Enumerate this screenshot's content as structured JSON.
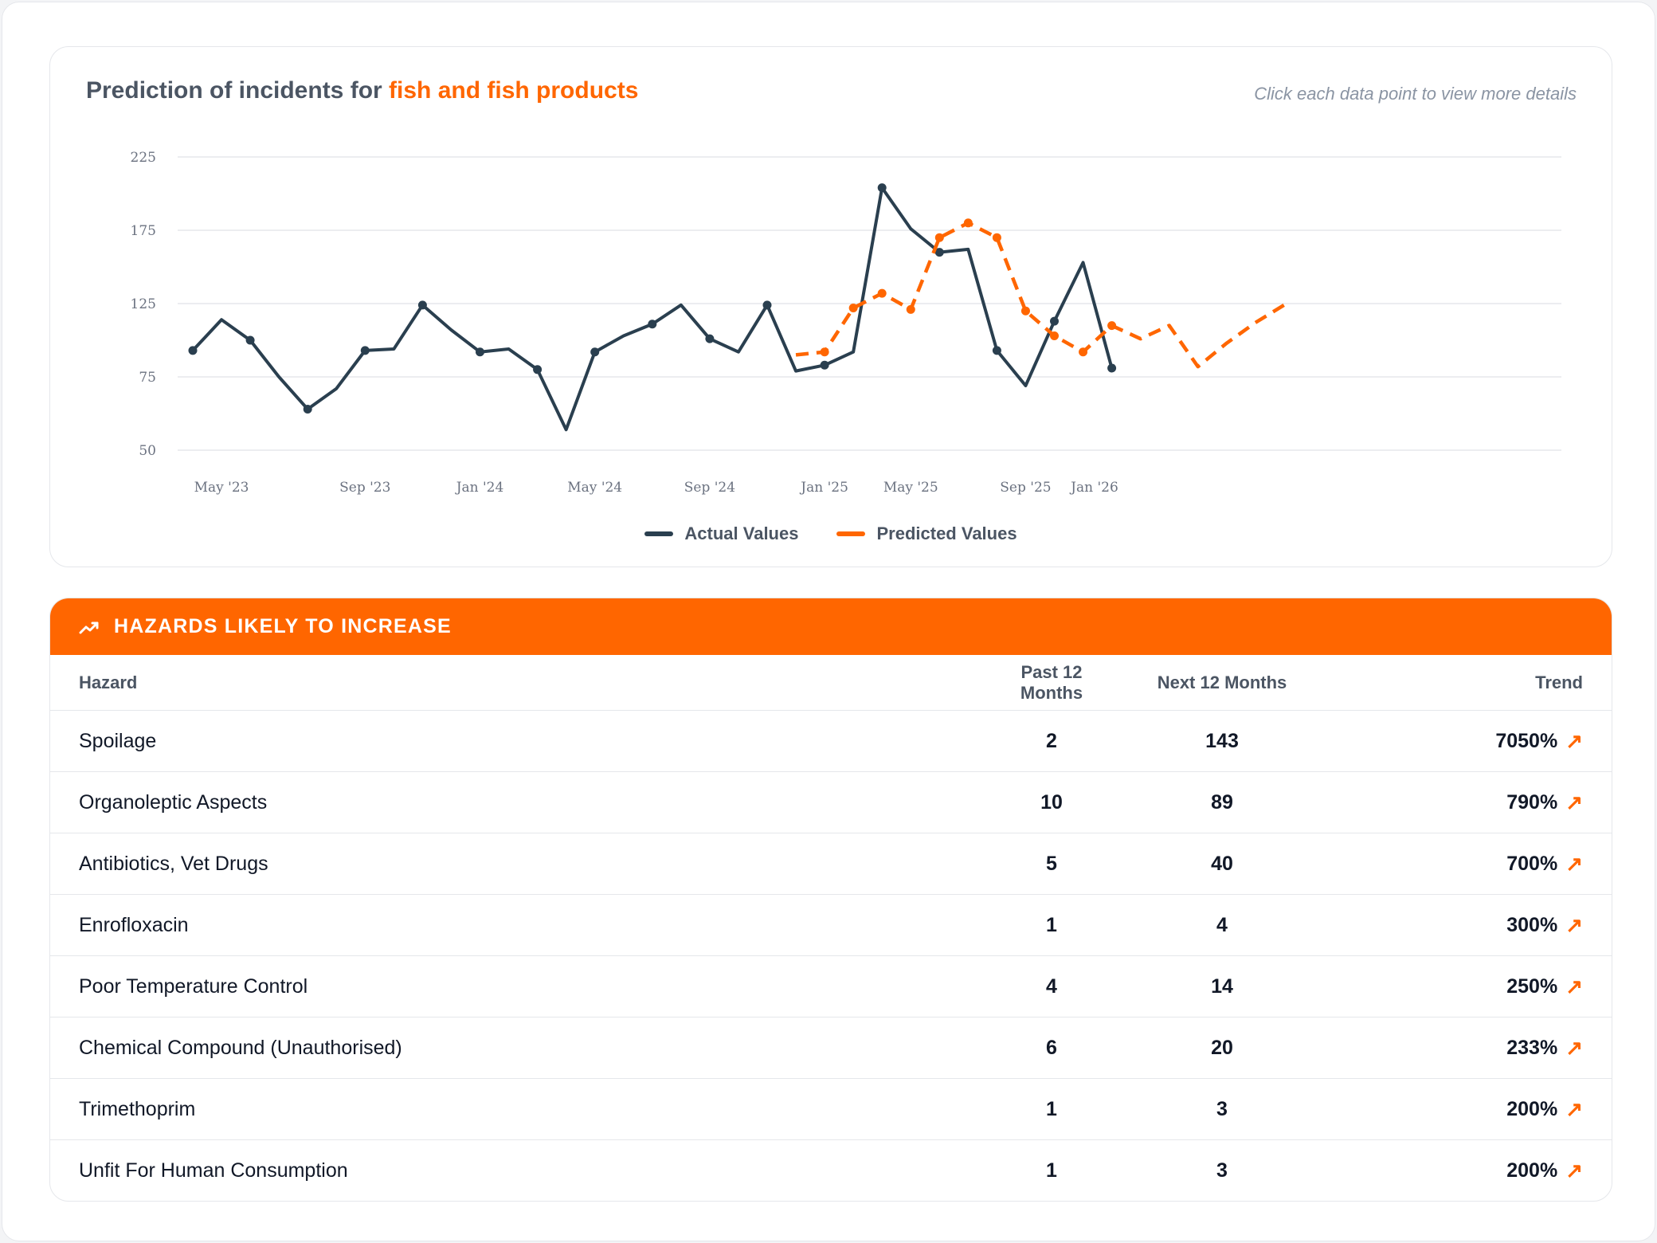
{
  "chart": {
    "title_prefix": "Prediction of incidents for ",
    "title_highlight": "fish and fish products",
    "hint": "Click each data point to view more details",
    "legend": {
      "actual": "Actual Values",
      "predicted": "Predicted Values"
    }
  },
  "colors": {
    "accent": "#ff6600",
    "actual": "#2a3f4f",
    "grid": "#e5e7eb"
  },
  "chart_data": {
    "type": "line",
    "y_ticks": [
      50,
      75,
      125,
      175,
      225
    ],
    "x_ticks": [
      "May '23",
      "Sep '23",
      "Jan '24",
      "May '24",
      "Sep '24",
      "Jan '25",
      "May '25",
      "Sep '25",
      "Jan '26"
    ],
    "x_tick_index": [
      1,
      6,
      10,
      14,
      18,
      22,
      25,
      29,
      31.4
    ],
    "series": [
      {
        "name": "Actual Values",
        "x_index": [
          0,
          1,
          2,
          3,
          4,
          5,
          6,
          7,
          8,
          9,
          10,
          11,
          12,
          13,
          14,
          15,
          16,
          17,
          18,
          19,
          20,
          21,
          22,
          23,
          24,
          25,
          26,
          27,
          28,
          29,
          30,
          31,
          32
        ],
        "values": [
          93,
          114,
          100,
          75,
          64,
          71,
          93,
          94,
          124,
          107,
          92,
          94,
          80,
          57,
          92,
          103,
          111,
          124,
          101,
          92,
          124,
          79,
          83,
          92,
          204,
          176,
          160,
          162,
          93,
          72,
          113,
          153,
          81
        ],
        "markers": [
          0,
          2,
          4,
          6,
          8,
          10,
          12,
          14,
          16,
          18,
          20,
          22,
          24,
          26,
          28,
          30,
          32
        ]
      },
      {
        "name": "Predicted Values",
        "x_index": [
          21,
          22,
          23,
          24,
          25,
          26,
          27,
          28,
          29,
          30,
          31,
          32,
          33,
          34,
          35,
          36,
          37,
          38
        ],
        "values": [
          90,
          92,
          122,
          132,
          121,
          170,
          180,
          170,
          120,
          103,
          92,
          110,
          101,
          110,
          82,
          98,
          112,
          124
        ],
        "markers_index": [
          22,
          23,
          24,
          25,
          26,
          27,
          28,
          29,
          30,
          31,
          32
        ],
        "note": ""
      }
    ]
  },
  "hazards": {
    "title": "HAZARDS LIKELY TO INCREASE",
    "columns": {
      "hazard": "Hazard",
      "past": "Past 12 Months",
      "next": "Next 12 Months",
      "trend": "Trend"
    },
    "rows": [
      {
        "hazard": "Spoilage",
        "past": "2",
        "next": "143",
        "trend": "7050%"
      },
      {
        "hazard": "Organoleptic Aspects",
        "past": "10",
        "next": "89",
        "trend": "790%"
      },
      {
        "hazard": "Antibiotics, Vet Drugs",
        "past": "5",
        "next": "40",
        "trend": "700%"
      },
      {
        "hazard": "Enrofloxacin",
        "past": "1",
        "next": "4",
        "trend": "300%"
      },
      {
        "hazard": "Poor Temperature Control",
        "past": "4",
        "next": "14",
        "trend": "250%"
      },
      {
        "hazard": "Chemical Compound (Unauthorised)",
        "past": "6",
        "next": "20",
        "trend": "233%"
      },
      {
        "hazard": "Trimethoprim",
        "past": "1",
        "next": "3",
        "trend": "200%"
      },
      {
        "hazard": "Unfit For Human Consumption",
        "past": "1",
        "next": "3",
        "trend": "200%"
      }
    ]
  }
}
